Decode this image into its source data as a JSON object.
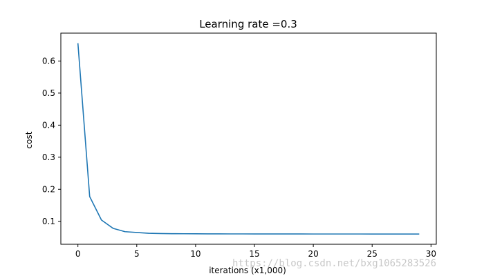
{
  "chart_data": {
    "type": "line",
    "title": "Learning rate =0.3",
    "xlabel": "iterations (x1,000)",
    "ylabel": "cost",
    "xlim": [
      -1.45,
      30.45
    ],
    "ylim": [
      0.0285,
      0.687
    ],
    "xticks": [
      0,
      5,
      10,
      15,
      20,
      25,
      30
    ],
    "yticks": [
      0.1,
      0.2,
      0.3,
      0.4,
      0.5,
      0.6
    ],
    "ytick_labels": [
      "0.1",
      "0.2",
      "0.3",
      "0.4",
      "0.5",
      "0.6"
    ],
    "grid": false,
    "line_color": "#1f77b4",
    "series": [
      {
        "x": [
          0,
          1,
          2,
          3,
          4,
          5,
          6,
          7,
          8,
          9,
          10,
          11,
          12,
          13,
          14,
          15,
          16,
          17,
          18,
          19,
          20,
          21,
          22,
          23,
          24,
          25,
          26,
          27,
          28,
          29
        ],
        "values": [
          0.6557,
          0.1772,
          0.1041,
          0.0779,
          0.0678,
          0.0652,
          0.0627,
          0.0621,
          0.0615,
          0.0613,
          0.0611,
          0.061,
          0.0609,
          0.0608,
          0.0608,
          0.0607,
          0.0607,
          0.0606,
          0.0606,
          0.0606,
          0.0605,
          0.0605,
          0.0605,
          0.0605,
          0.0605,
          0.0604,
          0.0604,
          0.0604,
          0.0604,
          0.0604
        ]
      }
    ]
  },
  "watermark": "https://blog.csdn.net/bxg1065283526"
}
